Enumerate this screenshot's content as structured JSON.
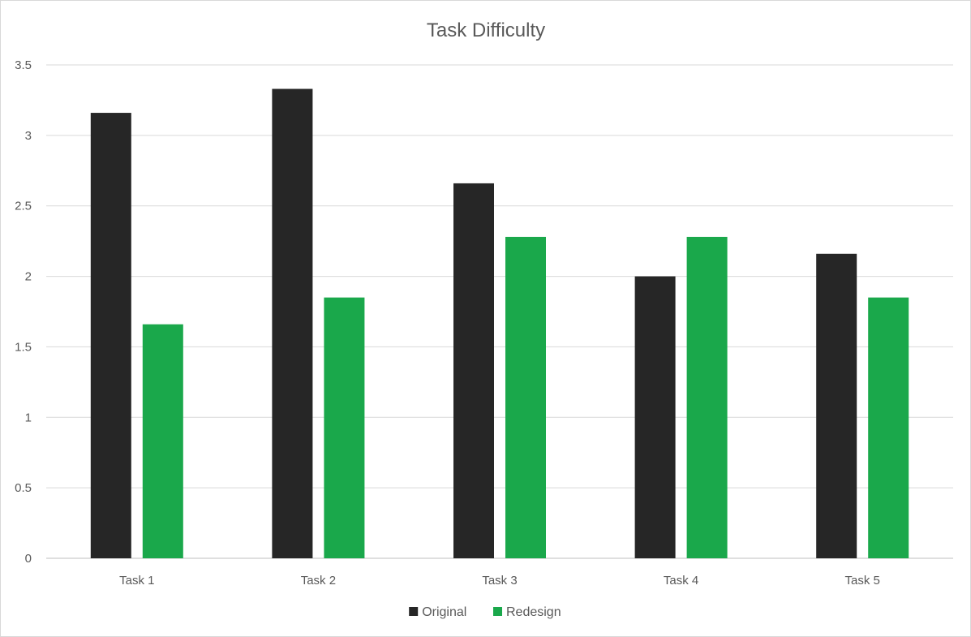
{
  "chart_data": {
    "type": "bar",
    "title": "Task Difficulty",
    "categories": [
      "Task 1",
      "Task 2",
      "Task 3",
      "Task 4",
      "Task 5"
    ],
    "series": [
      {
        "name": "Original",
        "color": "#262626",
        "values": [
          3.16,
          3.33,
          2.66,
          2.0,
          2.16
        ]
      },
      {
        "name": "Redesign",
        "color": "#1aa84b",
        "values": [
          1.66,
          1.85,
          2.28,
          2.28,
          1.85
        ]
      }
    ],
    "yticks": [
      "0",
      "0.5",
      "1",
      "1.5",
      "2",
      "2.5",
      "3",
      "3.5"
    ],
    "ylim": [
      0,
      3.5
    ],
    "grid": true,
    "legend_position": "bottom"
  }
}
